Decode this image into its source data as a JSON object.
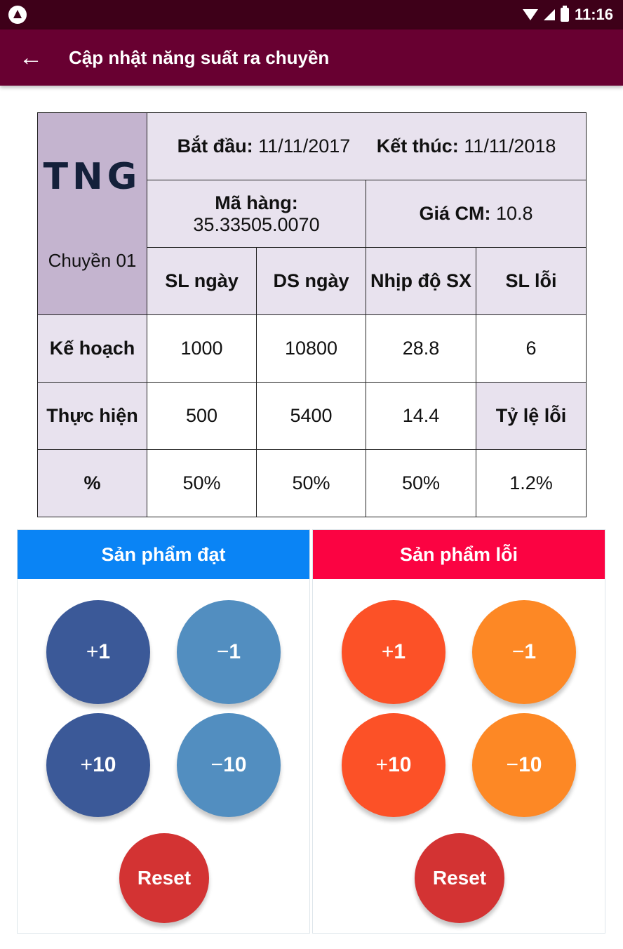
{
  "status": {
    "time": "11:16"
  },
  "appbar": {
    "back_icon": "←",
    "title": "Cập nhật năng suất ra chuyền"
  },
  "info": {
    "logo": "TNG",
    "line_name": "Chuyền 01",
    "start_label": "Bắt đầu:",
    "start_value": "11/11/2017",
    "end_label": "Kết thúc:",
    "end_value": "11/11/2018",
    "code_label": "Mã hàng:",
    "code_value": "35.33505.0070",
    "price_label": "Giá CM:",
    "price_value": "10.8"
  },
  "table": {
    "columns": [
      "SL ngày",
      "DS ngày",
      "Nhịp độ SX",
      "SL lỗi"
    ],
    "rows": [
      {
        "label": "Kế hoạch",
        "values": [
          "1000",
          "10800",
          "28.8",
          "6"
        ]
      },
      {
        "label": "Thực hiện",
        "values": [
          "500",
          "5400",
          "14.4"
        ],
        "extra_label": "Tỷ lệ lỗi"
      },
      {
        "label": "%",
        "values": [
          "50%",
          "50%",
          "50%",
          "1.2%"
        ]
      }
    ]
  },
  "good_panel": {
    "title": "Sản phẩm đạt",
    "plus1": {
      "sign": "+",
      "num": "1"
    },
    "minus1": {
      "sign": "−",
      "num": "1"
    },
    "plus10": {
      "sign": "+",
      "num": "10"
    },
    "minus10": {
      "sign": "−",
      "num": "10"
    },
    "reset": "Reset"
  },
  "defect_panel": {
    "title": "Sản phẩm lỗi",
    "plus1": {
      "sign": "+",
      "num": "1"
    },
    "minus1": {
      "sign": "−",
      "num": "1"
    },
    "plus10": {
      "sign": "+",
      "num": "10"
    },
    "minus10": {
      "sign": "−",
      "num": "10"
    },
    "reset": "Reset"
  },
  "colors": {
    "appbar": "#680031",
    "good_header": "#0a84f5",
    "defect_header": "#fb0342",
    "good_plus": "#3b5998",
    "good_minus": "#528ec0",
    "defect_plus": "#fc5127",
    "defect_minus": "#fd8825",
    "reset": "#d33333"
  }
}
